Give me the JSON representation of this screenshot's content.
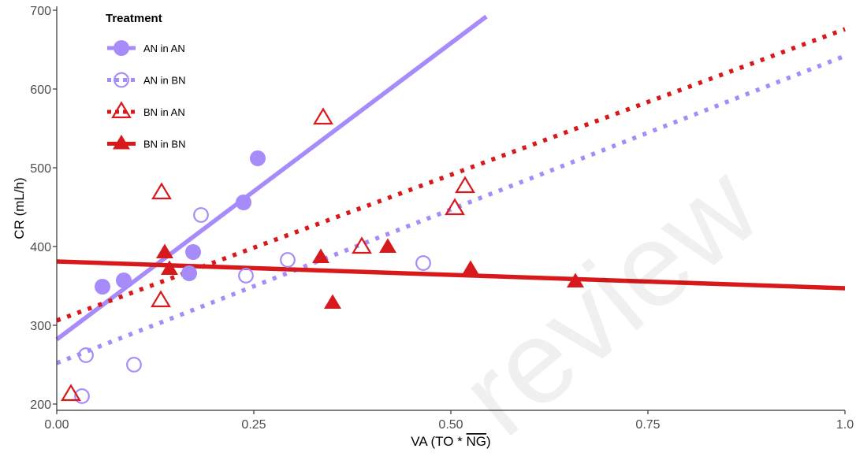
{
  "chart_data": {
    "type": "scatter",
    "xlabel": "VA (TO * NG)",
    "xlabel_parts": [
      "VA (TO * ",
      "NG",
      ")"
    ],
    "ylabel": "CR (mL/h)",
    "xlim": [
      0,
      1.0
    ],
    "ylim": [
      192,
      705
    ],
    "x_ticks": [
      0.0,
      0.25,
      0.5,
      0.75,
      1.0
    ],
    "x_tick_labels": [
      "0.00",
      "0.25",
      "0.50",
      "0.75",
      "1.0"
    ],
    "y_ticks": [
      200,
      300,
      400,
      500,
      600,
      700
    ],
    "y_tick_labels": [
      "200",
      "300",
      "400",
      "500",
      "600",
      "700"
    ],
    "grid": false,
    "legend": {
      "title": "Treatment",
      "placement": "top-left"
    },
    "watermark": "review",
    "series": [
      {
        "name": "AN in AN",
        "color": "#a78bfa",
        "marker": "circle-filled",
        "line": "solid",
        "fit": {
          "x": [
            0.0,
            0.545
          ],
          "y": [
            282,
            692
          ]
        },
        "points": [
          {
            "x": 0.058,
            "y": 349
          },
          {
            "x": 0.085,
            "y": 357
          },
          {
            "x": 0.168,
            "y": 366
          },
          {
            "x": 0.173,
            "y": 393
          },
          {
            "x": 0.237,
            "y": 456
          },
          {
            "x": 0.255,
            "y": 512
          }
        ]
      },
      {
        "name": "AN in BN",
        "color": "#a78bfa",
        "marker": "circle-open",
        "line": "dotted",
        "fit": {
          "x": [
            0.0,
            1.0
          ],
          "y": [
            252,
            642
          ]
        },
        "points": [
          {
            "x": 0.032,
            "y": 210
          },
          {
            "x": 0.037,
            "y": 262
          },
          {
            "x": 0.098,
            "y": 250
          },
          {
            "x": 0.183,
            "y": 440
          },
          {
            "x": 0.24,
            "y": 363
          },
          {
            "x": 0.293,
            "y": 383
          },
          {
            "x": 0.465,
            "y": 379
          }
        ]
      },
      {
        "name": "BN in AN",
        "color": "#d7191c",
        "marker": "triangle-open",
        "line": "dotted",
        "fit": {
          "x": [
            0.0,
            1.0
          ],
          "y": [
            306,
            676
          ]
        },
        "points": [
          {
            "x": 0.018,
            "y": 212
          },
          {
            "x": 0.132,
            "y": 331
          },
          {
            "x": 0.133,
            "y": 468
          },
          {
            "x": 0.338,
            "y": 563
          },
          {
            "x": 0.387,
            "y": 399
          },
          {
            "x": 0.505,
            "y": 448
          },
          {
            "x": 0.518,
            "y": 476
          }
        ]
      },
      {
        "name": "BN in BN",
        "color": "#d7191c",
        "marker": "triangle-filled",
        "line": "solid",
        "fit": {
          "x": [
            0.0,
            1.0
          ],
          "y": [
            381,
            347
          ]
        },
        "points": [
          {
            "x": 0.137,
            "y": 392
          },
          {
            "x": 0.143,
            "y": 371
          },
          {
            "x": 0.335,
            "y": 386
          },
          {
            "x": 0.35,
            "y": 328
          },
          {
            "x": 0.42,
            "y": 399
          },
          {
            "x": 0.525,
            "y": 371
          },
          {
            "x": 0.658,
            "y": 355
          }
        ]
      }
    ]
  }
}
